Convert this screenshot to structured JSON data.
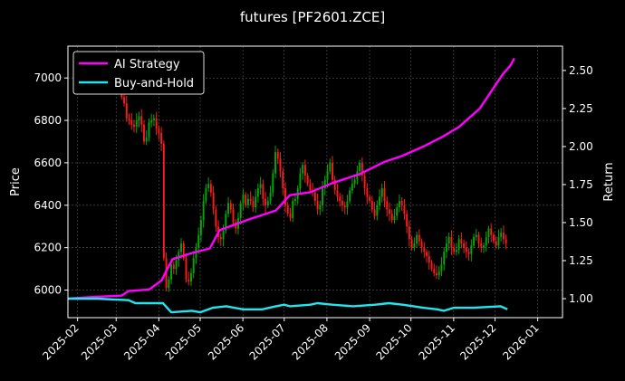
{
  "chart_data": {
    "type": "line",
    "title": "futures [PF2601.ZCE]",
    "ylabel_left": "Price",
    "ylabel_right": "Return",
    "x_ticks": [
      "2025-02",
      "2025-03",
      "2025-04",
      "2025-05",
      "2025-06",
      "2025-07",
      "2025-08",
      "2025-09",
      "2025-10",
      "2025-11",
      "2025-12",
      "2026-01"
    ],
    "x_range": [
      "2025-01-25",
      "2026-01-19"
    ],
    "ylim_left": [
      5870,
      7150
    ],
    "yticks_left": [
      6000,
      6200,
      6400,
      6600,
      6800,
      7000
    ],
    "ylim_right": [
      0.875,
      2.66
    ],
    "yticks_right": [
      "1.00",
      "1.25",
      "1.50",
      "1.75",
      "2.00",
      "2.25",
      "2.50"
    ],
    "grid": true,
    "legend": {
      "position": "top-left",
      "entries": [
        "AI Strategy",
        "Buy-and-Hold"
      ]
    },
    "colors": {
      "ai": "#ff00ff",
      "bh": "#22e5ef",
      "up": "#00aa00",
      "down": "#ff1a1a",
      "grid": "#5a5a5a"
    },
    "series": [
      {
        "name": "AI Strategy",
        "axis": "right",
        "points": [
          [
            "2025-01-25",
            1.0
          ],
          [
            "2025-02-10",
            1.01
          ],
          [
            "2025-03-05",
            1.02
          ],
          [
            "2025-03-10",
            1.05
          ],
          [
            "2025-03-25",
            1.06
          ],
          [
            "2025-04-03",
            1.12
          ],
          [
            "2025-04-08",
            1.21
          ],
          [
            "2025-04-11",
            1.26
          ],
          [
            "2025-04-25",
            1.3
          ],
          [
            "2025-05-08",
            1.33
          ],
          [
            "2025-05-15",
            1.45
          ],
          [
            "2025-06-05",
            1.52
          ],
          [
            "2025-06-25",
            1.58
          ],
          [
            "2025-07-05",
            1.68
          ],
          [
            "2025-07-20",
            1.7
          ],
          [
            "2025-08-05",
            1.76
          ],
          [
            "2025-08-25",
            1.82
          ],
          [
            "2025-09-12",
            1.9
          ],
          [
            "2025-09-25",
            1.94
          ],
          [
            "2025-10-10",
            2.0
          ],
          [
            "2025-10-25",
            2.07
          ],
          [
            "2025-11-05",
            2.13
          ],
          [
            "2025-11-20",
            2.25
          ],
          [
            "2025-12-01",
            2.4
          ],
          [
            "2025-12-07",
            2.48
          ],
          [
            "2025-12-12",
            2.53
          ],
          [
            "2025-12-15",
            2.58
          ]
        ]
      },
      {
        "name": "Buy-and-Hold",
        "axis": "right",
        "points": [
          [
            "2025-01-25",
            1.0
          ],
          [
            "2025-02-15",
            1.0
          ],
          [
            "2025-03-10",
            0.99
          ],
          [
            "2025-03-15",
            0.97
          ],
          [
            "2025-04-04",
            0.97
          ],
          [
            "2025-04-07",
            0.94
          ],
          [
            "2025-04-10",
            0.91
          ],
          [
            "2025-04-25",
            0.92
          ],
          [
            "2025-05-01",
            0.91
          ],
          [
            "2025-05-10",
            0.94
          ],
          [
            "2025-05-20",
            0.95
          ],
          [
            "2025-06-01",
            0.93
          ],
          [
            "2025-06-15",
            0.93
          ],
          [
            "2025-06-25",
            0.95
          ],
          [
            "2025-07-01",
            0.96
          ],
          [
            "2025-07-05",
            0.95
          ],
          [
            "2025-07-20",
            0.96
          ],
          [
            "2025-07-25",
            0.97
          ],
          [
            "2025-08-05",
            0.96
          ],
          [
            "2025-08-20",
            0.95
          ],
          [
            "2025-09-05",
            0.96
          ],
          [
            "2025-09-15",
            0.97
          ],
          [
            "2025-09-25",
            0.96
          ],
          [
            "2025-10-10",
            0.94
          ],
          [
            "2025-10-20",
            0.93
          ],
          [
            "2025-10-25",
            0.92
          ],
          [
            "2025-11-01",
            0.94
          ],
          [
            "2025-11-15",
            0.94
          ],
          [
            "2025-12-05",
            0.95
          ],
          [
            "2025-12-10",
            0.93
          ]
        ]
      }
    ],
    "candles": {
      "axis": "left",
      "note": "daily OHLC, close values approximated",
      "closes": [
        6910,
        6880,
        6810,
        6800,
        6780,
        6770,
        6800,
        6820,
        6780,
        6700,
        6720,
        6790,
        6800,
        6810,
        6760,
        6740,
        6690,
        6150,
        6010,
        6050,
        6120,
        6100,
        6140,
        6180,
        6220,
        6150,
        6050,
        6040,
        6080,
        6150,
        6200,
        6260,
        6330,
        6420,
        6480,
        6500,
        6460,
        6380,
        6300,
        6250,
        6240,
        6280,
        6360,
        6410,
        6380,
        6320,
        6290,
        6340,
        6410,
        6450,
        6400,
        6430,
        6420,
        6390,
        6440,
        6480,
        6500,
        6430,
        6400,
        6420,
        6460,
        6550,
        6650,
        6620,
        6560,
        6480,
        6400,
        6360,
        6340,
        6420,
        6430,
        6480,
        6550,
        6590,
        6540,
        6500,
        6470,
        6460,
        6420,
        6380,
        6400,
        6480,
        6520,
        6560,
        6600,
        6520,
        6470,
        6440,
        6420,
        6400,
        6390,
        6420,
        6470,
        6500,
        6520,
        6560,
        6600,
        6540,
        6480,
        6440,
        6420,
        6380,
        6350,
        6400,
        6440,
        6480,
        6420,
        6380,
        6360,
        6330,
        6350,
        6390,
        6420,
        6400,
        6360,
        6300,
        6240,
        6200,
        6220,
        6260,
        6230,
        6200,
        6180,
        6160,
        6130,
        6100,
        6080,
        6070,
        6090,
        6120,
        6180,
        6220,
        6250,
        6200,
        6180,
        6190,
        6240,
        6220,
        6200,
        6180,
        6170,
        6210,
        6250,
        6260,
        6220,
        6200,
        6210,
        6250,
        6290,
        6260,
        6230,
        6210,
        6250,
        6270,
        6240,
        6220
      ]
    }
  }
}
